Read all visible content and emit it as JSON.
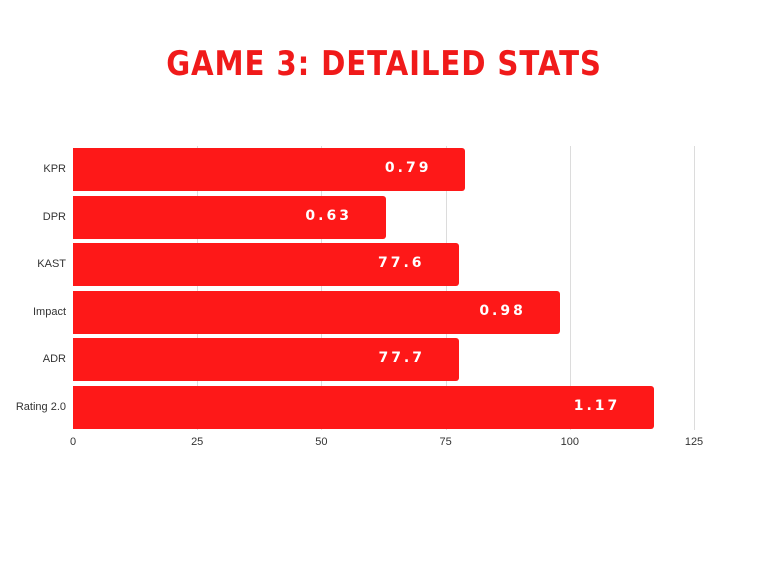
{
  "title": "GAME 3: DETAILED STATS",
  "colors": {
    "bar": "#fe1818",
    "title": "#f01a1a",
    "grid": "#dcdcdc"
  },
  "chart_data": {
    "type": "bar",
    "orientation": "horizontal",
    "title": "GAME 3: DETAILED STATS",
    "categories": [
      "KPR",
      "DPR",
      "KAST",
      "Impact",
      "ADR",
      "Rating 2.0"
    ],
    "values": [
      0.79,
      0.63,
      77.6,
      0.98,
      77.7,
      1.17
    ],
    "bar_lengths_on_axis": [
      79,
      63,
      77.6,
      98,
      77.7,
      117
    ],
    "data_labels": [
      "0.79",
      "0.63",
      "77.6",
      "0.98",
      "77.7",
      "1.17"
    ],
    "xlabel": "",
    "ylabel": "",
    "xlim": [
      0,
      125
    ],
    "x_ticks": [
      "0",
      "25",
      "50",
      "75",
      "100",
      "125"
    ],
    "grid": true,
    "legend": "none"
  }
}
